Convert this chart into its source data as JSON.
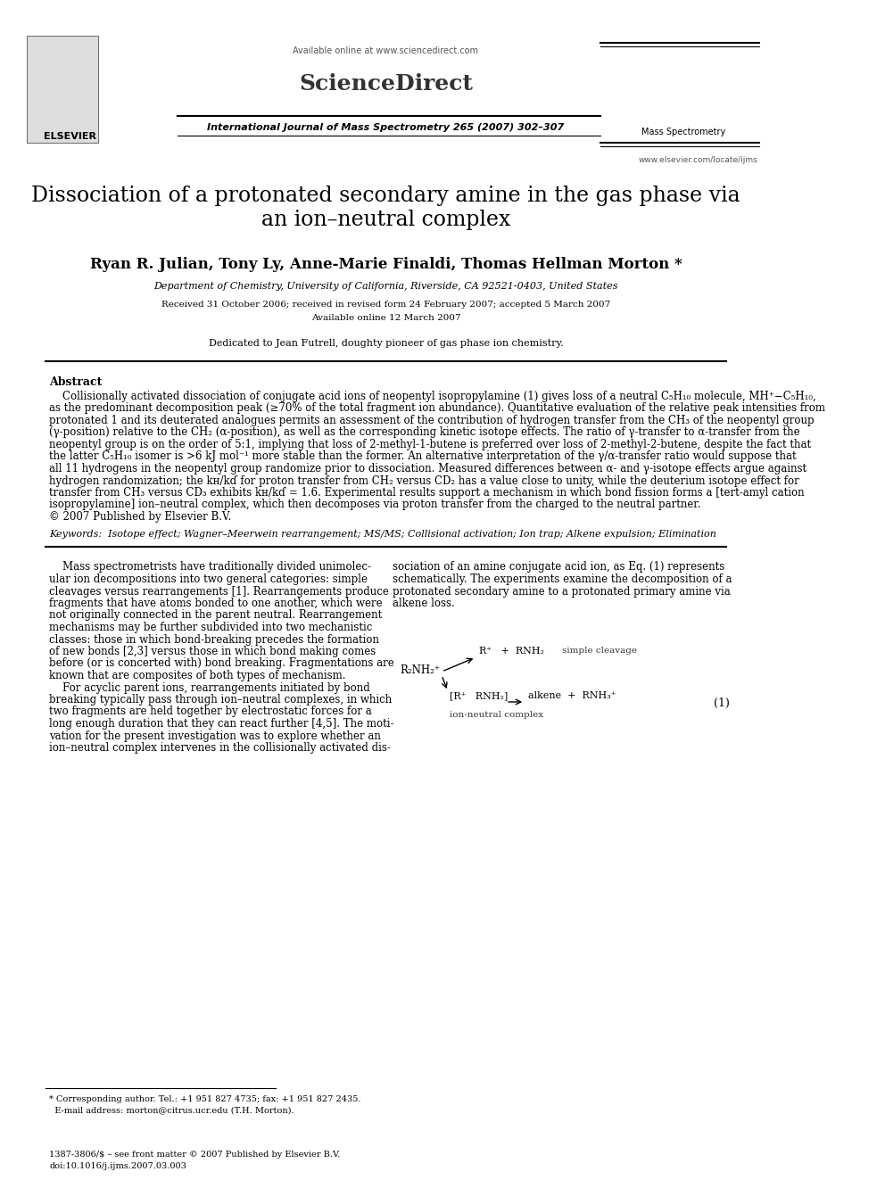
{
  "title": "Dissociation of a protonated secondary amine in the gas phase via\nan ion–neutral complex",
  "authors": "Ryan R. Julian, Tony Ly, Anne-Marie Finaldi, Thomas Hellman Morton *",
  "affiliation": "Department of Chemistry, University of California, Riverside, CA 92521-0403, United States",
  "received": "Received 31 October 2006; received in revised form 24 February 2007; accepted 5 March 2007",
  "available": "Available online 12 March 2007",
  "dedication": "Dedicated to Jean Futrell, doughty pioneer of gas phase ion chemistry.",
  "journal_line": "International Journal of Mass Spectrometry 265 (2007) 302–307",
  "available_online": "Available online at www.sciencedirect.com",
  "elsevier_text": "ELSEVIER",
  "website": "www.elsevier.com/locate/ijms",
  "abstract_title": "Abstract",
  "abstract_text": "    Collisionally activated dissociation of conjugate acid ions of neopentyl isopropylamine (1) gives loss of a neutral C₅H₁₀ molecule, MH⁺−C₅H₁₀, as the predominant decomposition peak (≥70% of the total fragment ion abundance). Quantitative evaluation of the relative peak intensities from protonated 1 and its deuterated analogues permits an assessment of the contribution of hydrogen transfer from the CH₃ of the neopentyl group (γ-position) relative to the CH₂ (α-position), as well as the corresponding kinetic isotope effects. The ratio of γ-transfer to α-transfer from the neopentyl group is on the order of 5:1, implying that loss of 2-methyl-1-butene is preferred over loss of 2-methyl-2-butene, despite the fact that the latter C₅H₁₀ isomer is >6 kJ mol⁻¹ more stable than the former. An alternative interpretation of the γ/α-transfer ratio would suppose that all 11 hydrogens in the neopentyl group randomize prior to dissociation. Measured differences between α- and γ-isotope effects argue against hydrogen randomization; the kʜ/kɗ for proton transfer from CH₂ versus CD₂ has a value close to unity, while the deuterium isotope effect for transfer from CH₃ versus CD₃ exhibits kʜ/kɗ = 1.6. Experimental results support a mechanism in which bond fission forms a [tert-amyl cation isopropylamine] ion–neutral complex, which then decomposes via proton transfer from the charged to the neutral partner.\n© 2007 Published by Elsevier B.V.",
  "keywords": "Keywords:  Isotope effect; Wagner–Meerwein rearrangement; MS/MS; Collisional activation; Ion trap; Alkene expulsion; Elimination",
  "body_left": "    Mass spectrometrists have traditionally divided unimolecular ion decompositions into two general categories: simple cleavages versus rearrangements [1]. Rearrangements produce fragments that have atoms bonded to one another, which were not originally connected in the parent neutral. Rearrangement mechanisms may be further subdivided into two mechanistic classes: those in which bond-breaking precedes the formation of new bonds [2,3] versus those in which bond making comes before (or is concerted with) bond breaking. Fragmentations are known that are composites of both types of mechanism.\n    For acyclic parent ions, rearrangements initiated by bond breaking typically pass through ion–neutral complexes, in which two fragments are held together by electrostatic forces for a long enough duration that they can react further [4,5]. The motivation for the present investigation was to explore whether an ion–neutral complex intervenes in the collisionally activated dis-",
  "body_right": "sociation of an amine conjugate acid ion, as Eq. (1) represents schematically. The experiments examine the decomposition of a protonated secondary amine to a protonated primary amine via alkene loss.",
  "footnote_star": "* Corresponding author. Tel.: +1 951 827 4735; fax: +1 951 827 2435.\n  E-mail address: morton@citrus.ucr.edu (T.H. Morton).",
  "footer_issn": "1387-3806/$ – see front matter © 2007 Published by Elsevier B.V.",
  "footer_doi": "doi:10.1016/j.ijms.2007.03.003",
  "bg_color": "#ffffff",
  "text_color": "#000000",
  "title_fontsize": 17,
  "author_fontsize": 12,
  "body_fontsize": 8.5
}
